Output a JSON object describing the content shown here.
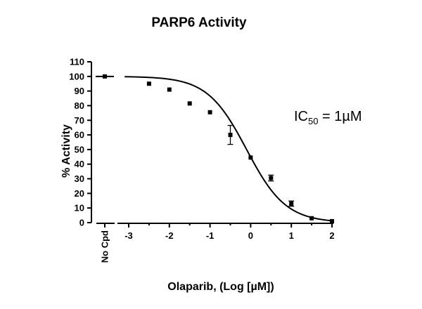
{
  "chart_data": {
    "type": "scatter",
    "title": "PARP6 Activity",
    "xlabel": "Olaparib, (Log [µM])",
    "ylabel": "% Activity",
    "xlim": [
      -3,
      2
    ],
    "ylim": [
      0,
      110
    ],
    "x_ticks": [
      "-3",
      "-2",
      "-1",
      "0",
      "1",
      "2"
    ],
    "y_ticks": [
      "0",
      "10",
      "20",
      "30",
      "40",
      "50",
      "60",
      "70",
      "80",
      "90",
      "100",
      "110"
    ],
    "control": {
      "label": "No Cpd",
      "value": 100
    },
    "series": [
      {
        "points": [
          {
            "x": -2.5,
            "y": 95,
            "err": 0
          },
          {
            "x": -2.0,
            "y": 91,
            "err": 0
          },
          {
            "x": -1.5,
            "y": 81.5,
            "err": 0
          },
          {
            "x": -1.0,
            "y": 75.5,
            "err": 0
          },
          {
            "x": -0.5,
            "y": 60,
            "err": 6.5
          },
          {
            "x": 0.0,
            "y": 44.5,
            "err": 0
          },
          {
            "x": 0.5,
            "y": 30.5,
            "err": 2
          },
          {
            "x": 1.0,
            "y": 13,
            "err": 1.8
          },
          {
            "x": 1.5,
            "y": 3,
            "err": 0
          },
          {
            "x": 2.0,
            "y": 1,
            "err": 0
          }
        ]
      }
    ],
    "fit": {
      "model": "sigmoidal dose-response",
      "top": 100,
      "bottom": 0,
      "log_ic50": -0.1,
      "hill_slope": -0.9
    },
    "annotation": {
      "prefix": "IC",
      "sub": "50",
      "suffix": " = 1µM"
    }
  }
}
